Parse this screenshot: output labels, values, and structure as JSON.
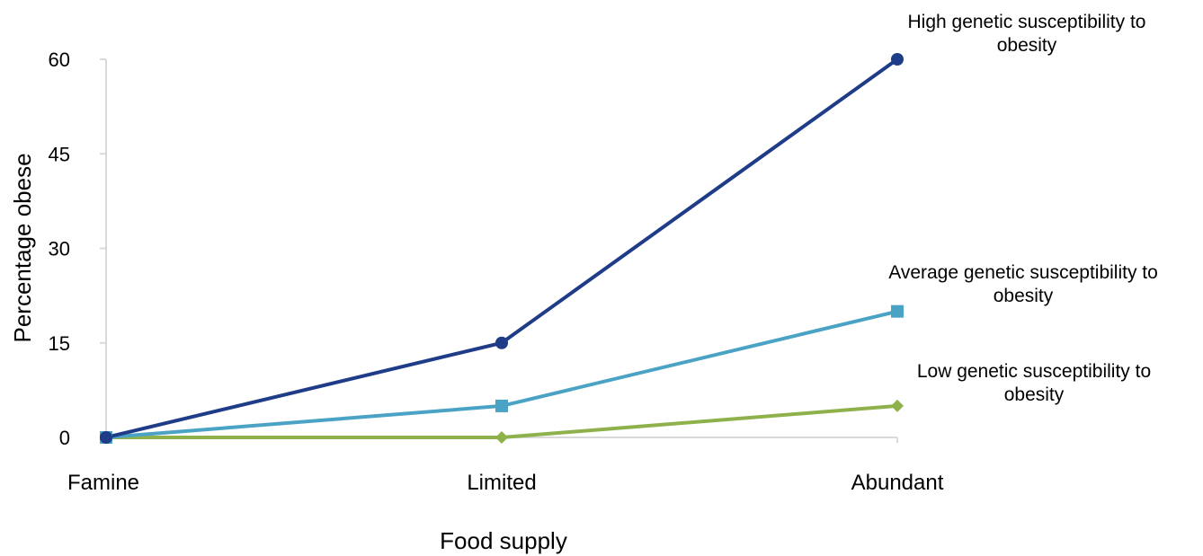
{
  "chart_data": {
    "type": "line",
    "title": "",
    "xlabel": "Food supply",
    "ylabel": "Percentage obese",
    "categories": [
      "Famine",
      "Limited",
      "Abundant"
    ],
    "ylim": [
      0,
      60
    ],
    "yticks": [
      0,
      15,
      30,
      45,
      60
    ],
    "grid": false,
    "legend": "none",
    "series": [
      {
        "name": "High genetic susceptibility to obesity",
        "label_lines": [
          "High genetic susceptibility to",
          "obesity"
        ],
        "values": [
          0,
          15,
          60
        ],
        "color": "#1f3c88",
        "marker": "circle"
      },
      {
        "name": "Average genetic susceptibility to obesity",
        "label_lines": [
          "Average genetic susceptibility to",
          "obesity"
        ],
        "values": [
          0,
          5,
          20
        ],
        "color": "#4aa3c4",
        "marker": "square"
      },
      {
        "name": "Low genetic susceptibility to obesity",
        "label_lines": [
          "Low genetic susceptibility to",
          "obesity"
        ],
        "values": [
          0,
          0,
          5
        ],
        "color": "#8fb14b",
        "marker": "diamond"
      }
    ]
  }
}
